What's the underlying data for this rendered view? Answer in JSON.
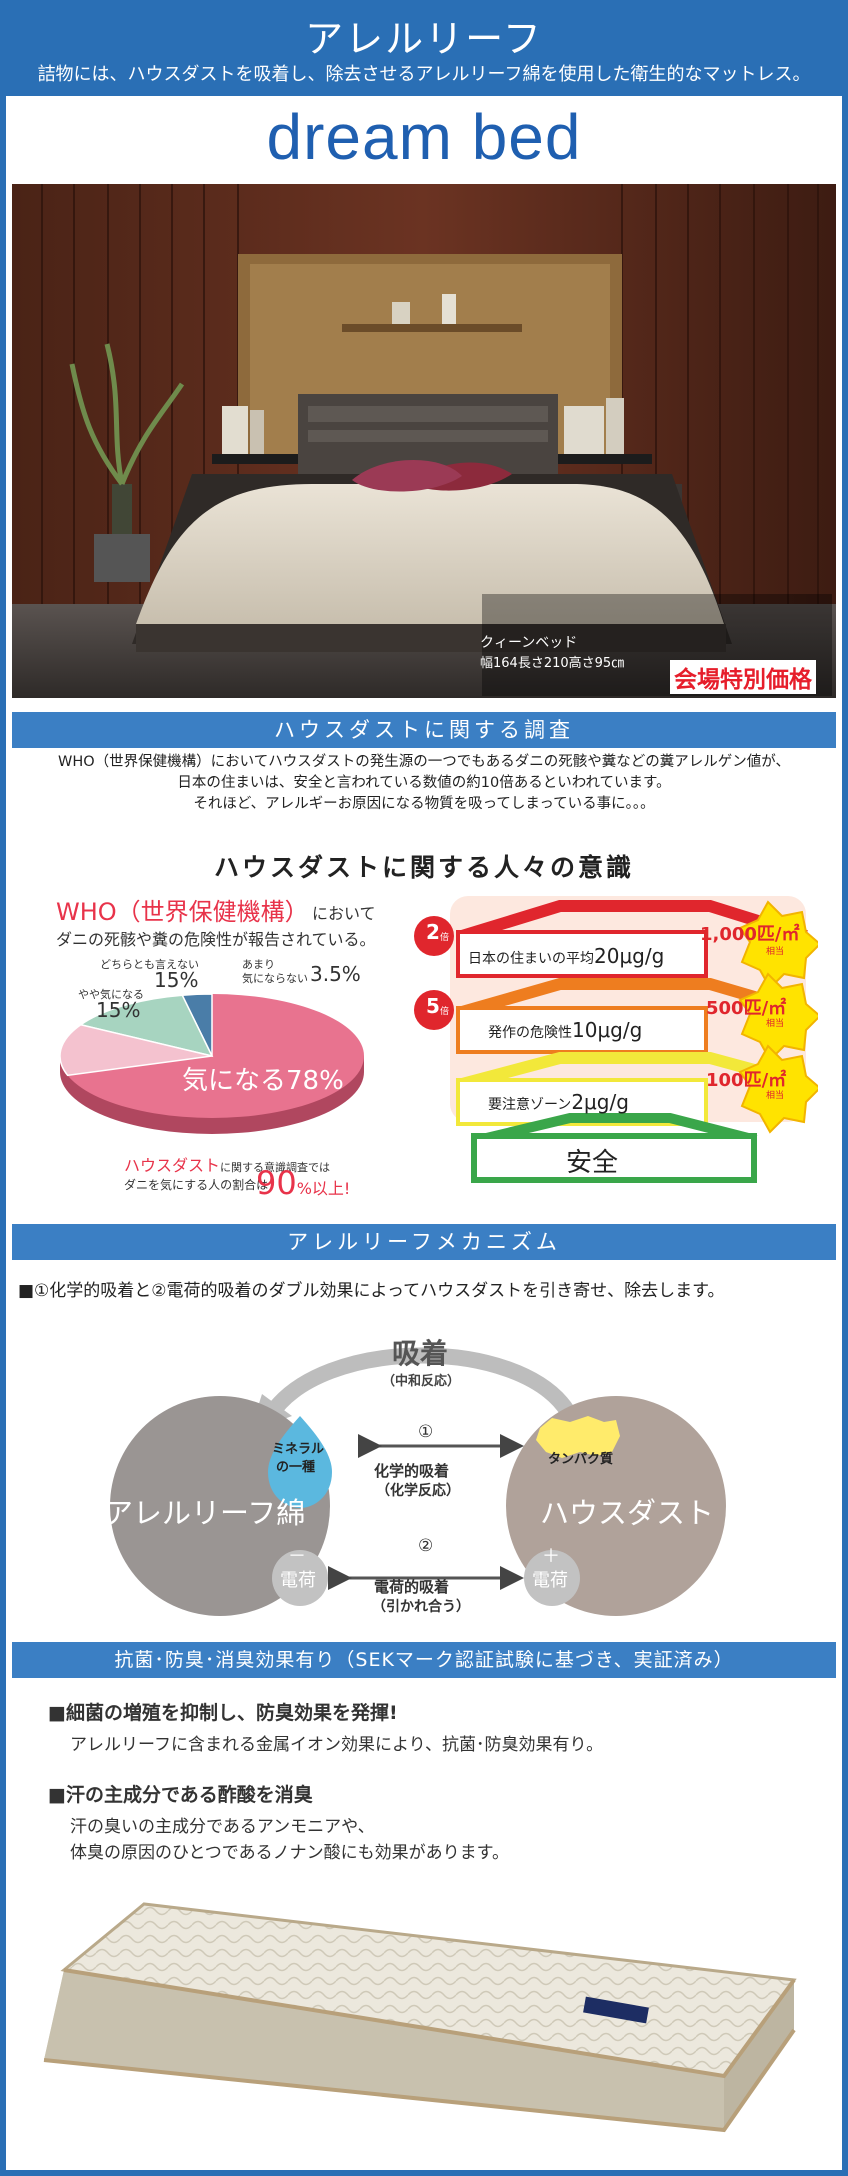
{
  "header": {
    "title": "アレルリーフ",
    "subtitle": "詰物には、ハウスダストを吸着し、除去させるアレルリーフ綿を使用した衛生的なマットレス。",
    "brand": "dream bed"
  },
  "hero": {
    "caption_line1": "クィーンベッド",
    "caption_line2": "幅164長さ210高さ95㎝",
    "price_badge": "会場特別価格"
  },
  "survey": {
    "bar_title": "ハウスダストに関する調査",
    "paragraph_line1": "WHO（世界保健機構）においてハウスダストの発生源の一つでもあるダニの死骸や糞などの糞アレルゲン値が、",
    "paragraph_line2": "日本の住まいは、安全と言われている数値の約10倍あるといわれています。",
    "paragraph_line3": "それほど、アレルギーお原因になる物質を吸ってしまっている事に。。。",
    "heading": "ハウスダストに関する人々の意識",
    "who_label": "WHO（世界保健機構）",
    "who_suffix": "において",
    "who_line2": "ダニの死骸や糞の危険性が報告されている。",
    "note_red": "ハウスダスト",
    "note_rest": "に関する意識調査では",
    "note_line2": "ダニを気にする人の割合は",
    "note_big": "90",
    "note_unit": "%以上!"
  },
  "chart_data": {
    "type": "pie",
    "categories": [
      "気になる",
      "やや気になる",
      "どちらとも言えない",
      "あまり気にならない"
    ],
    "values": [
      78,
      15,
      15,
      3.5
    ],
    "colors": [
      "#e8738f",
      "#f4c2cf",
      "#a7d4c0",
      "#4a7da8"
    ],
    "labels": {
      "main_text": "気になる",
      "main_value": "78%",
      "s1_text": "やや気になる",
      "s1_value": "15%",
      "s2_text": "どちらとも言えない",
      "s2_value": "15%",
      "s3_text1": "あまり",
      "s3_text2": "気にならない",
      "s3_value": "3.5%"
    }
  },
  "levels": {
    "row1_text": "日本の住まいの平均",
    "row1_value": "20μg/g",
    "row1_badge": "1,000匹/㎡",
    "row1_badge_sub": "相当",
    "row1_circle": "2",
    "row1_circle_sub": "倍",
    "row2_text": "発作の危険性",
    "row2_value": "10μg/g",
    "row2_badge": "500匹/㎡",
    "row2_badge_sub": "相当",
    "row2_circle": "5",
    "row2_circle_sub": "倍",
    "row3_text": "要注意ゾーン",
    "row3_value": "2μg/g",
    "row3_badge": "100匹/㎡",
    "row3_badge_sub": "相当",
    "safe_label": "安全",
    "colors": {
      "red": "#e0262d",
      "orange": "#ee7d1f",
      "yellow": "#f2e83a",
      "green": "#3aa64a"
    }
  },
  "mechanism": {
    "bar_title": "アレルリーフメカニズム",
    "intro": "■①化学的吸着と②電荷的吸着のダブル効果によってハウスダストを引き寄せ、除去します。",
    "absorb": "吸着",
    "absorb_sub": "（中和反応）",
    "left_circle": "アレルリーフ綿",
    "right_circle": "ハウスダスト",
    "mineral_1": "ミネラル",
    "mineral_2": "の一種",
    "protein": "タンパク質",
    "num1": "①",
    "chem_1": "化学的吸着",
    "chem_2": "（化学反応）",
    "num2": "②",
    "elec_1": "電荷的吸着",
    "elec_2": "（引かれ合う）",
    "minus": "－",
    "plus": "＋",
    "charge": "電荷"
  },
  "features": {
    "bar_title": "抗菌･防臭･消臭効果有り（SEKマーク認証試験に基づき、実証済み）",
    "f1_title": "■細菌の増殖を抑制し、防臭効果を発揮!",
    "f1_text": "アレルリーフに含まれる金属イオン効果により、抗菌･防臭効果有り。",
    "f2_title": "■汗の主成分である酢酸を消臭",
    "f2_text1": "汗の臭いの主成分であるアンモニアや、",
    "f2_text2": "体臭の原因のひとつであるノナン酸にも効果があります。"
  }
}
